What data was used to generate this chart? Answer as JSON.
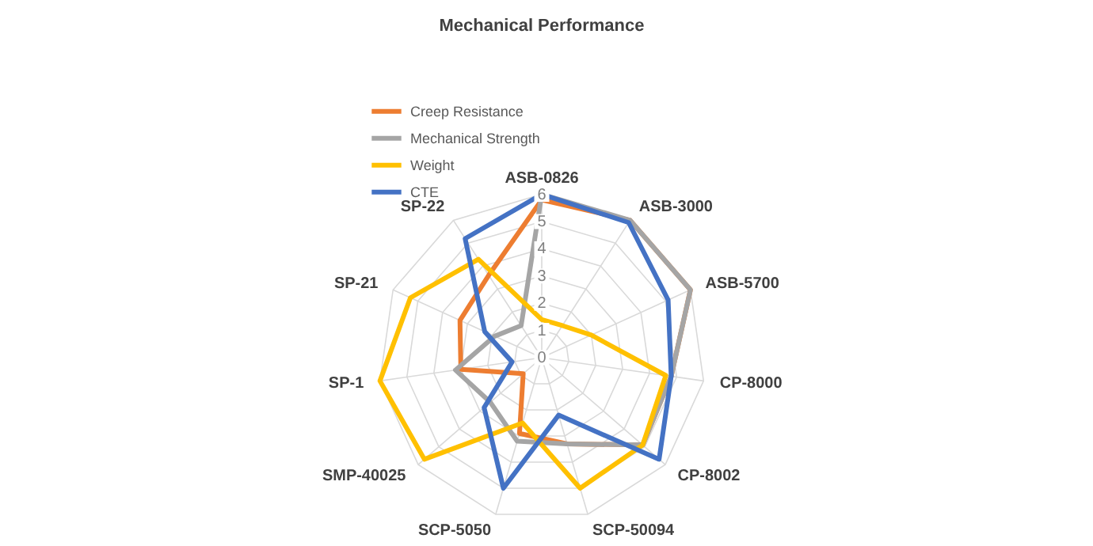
{
  "chart_data": {
    "type": "radar",
    "title": "Mechanical Performance",
    "categories": [
      "ASB-0826",
      "ASB-3000",
      "ASB-5700",
      "CP-8000",
      "CP-8002",
      "SCP-50094",
      "SCP-5050",
      "SMP-40025",
      "SP-1",
      "SP-21",
      "SP-22"
    ],
    "series": [
      {
        "name": "Creep Resistance",
        "color": "#ed7d31",
        "values": [
          5.8,
          6,
          6,
          4.8,
          4.9,
          3.3,
          2.9,
          0.9,
          3.0,
          3.3,
          3.6
        ]
      },
      {
        "name": "Mechanical Strength",
        "color": "#a5a5a5",
        "values": [
          6,
          6,
          6,
          4.8,
          4.9,
          3.3,
          3.2,
          2.5,
          3.2,
          1.9,
          1.4
        ]
      },
      {
        "name": "Weight",
        "color": "#ffc000",
        "values": [
          1.4,
          1.4,
          2.0,
          4.6,
          4.9,
          5.0,
          2.5,
          5.7,
          6.0,
          5.3,
          4.3
        ]
      },
      {
        "name": "CTE",
        "color": "#4472c4",
        "values": [
          6,
          5.9,
          5.1,
          4.8,
          5.7,
          2.2,
          5.0,
          2.8,
          1.1,
          2.3,
          5.2
        ]
      }
    ],
    "ylim": [
      0,
      6
    ],
    "yticks": [
      0,
      1,
      2,
      3,
      4,
      5,
      6
    ],
    "grid": true,
    "legend": "top left"
  }
}
